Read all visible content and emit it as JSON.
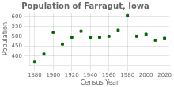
{
  "chart_data": {
    "type": "scatter",
    "title": "Population of Farragut, Iowa",
    "xlabel": "Census Year",
    "ylabel": "Population",
    "x": [
      1880,
      1890,
      1900,
      1910,
      1920,
      1930,
      1940,
      1950,
      1960,
      1970,
      1980,
      1990,
      2000,
      2010,
      2020
    ],
    "values": [
      370,
      410,
      520,
      460,
      495,
      525,
      495,
      495,
      500,
      530,
      605,
      500,
      510,
      480,
      490
    ],
    "color": "#006400",
    "marker": "square",
    "xlim": [
      1875,
      2025
    ],
    "ylim": [
      355,
      620
    ],
    "xticks": [
      1880,
      1900,
      1920,
      1940,
      1960,
      1980,
      2000,
      2020
    ],
    "yticks": [
      400,
      450,
      500,
      550,
      600
    ],
    "grid": true
  }
}
